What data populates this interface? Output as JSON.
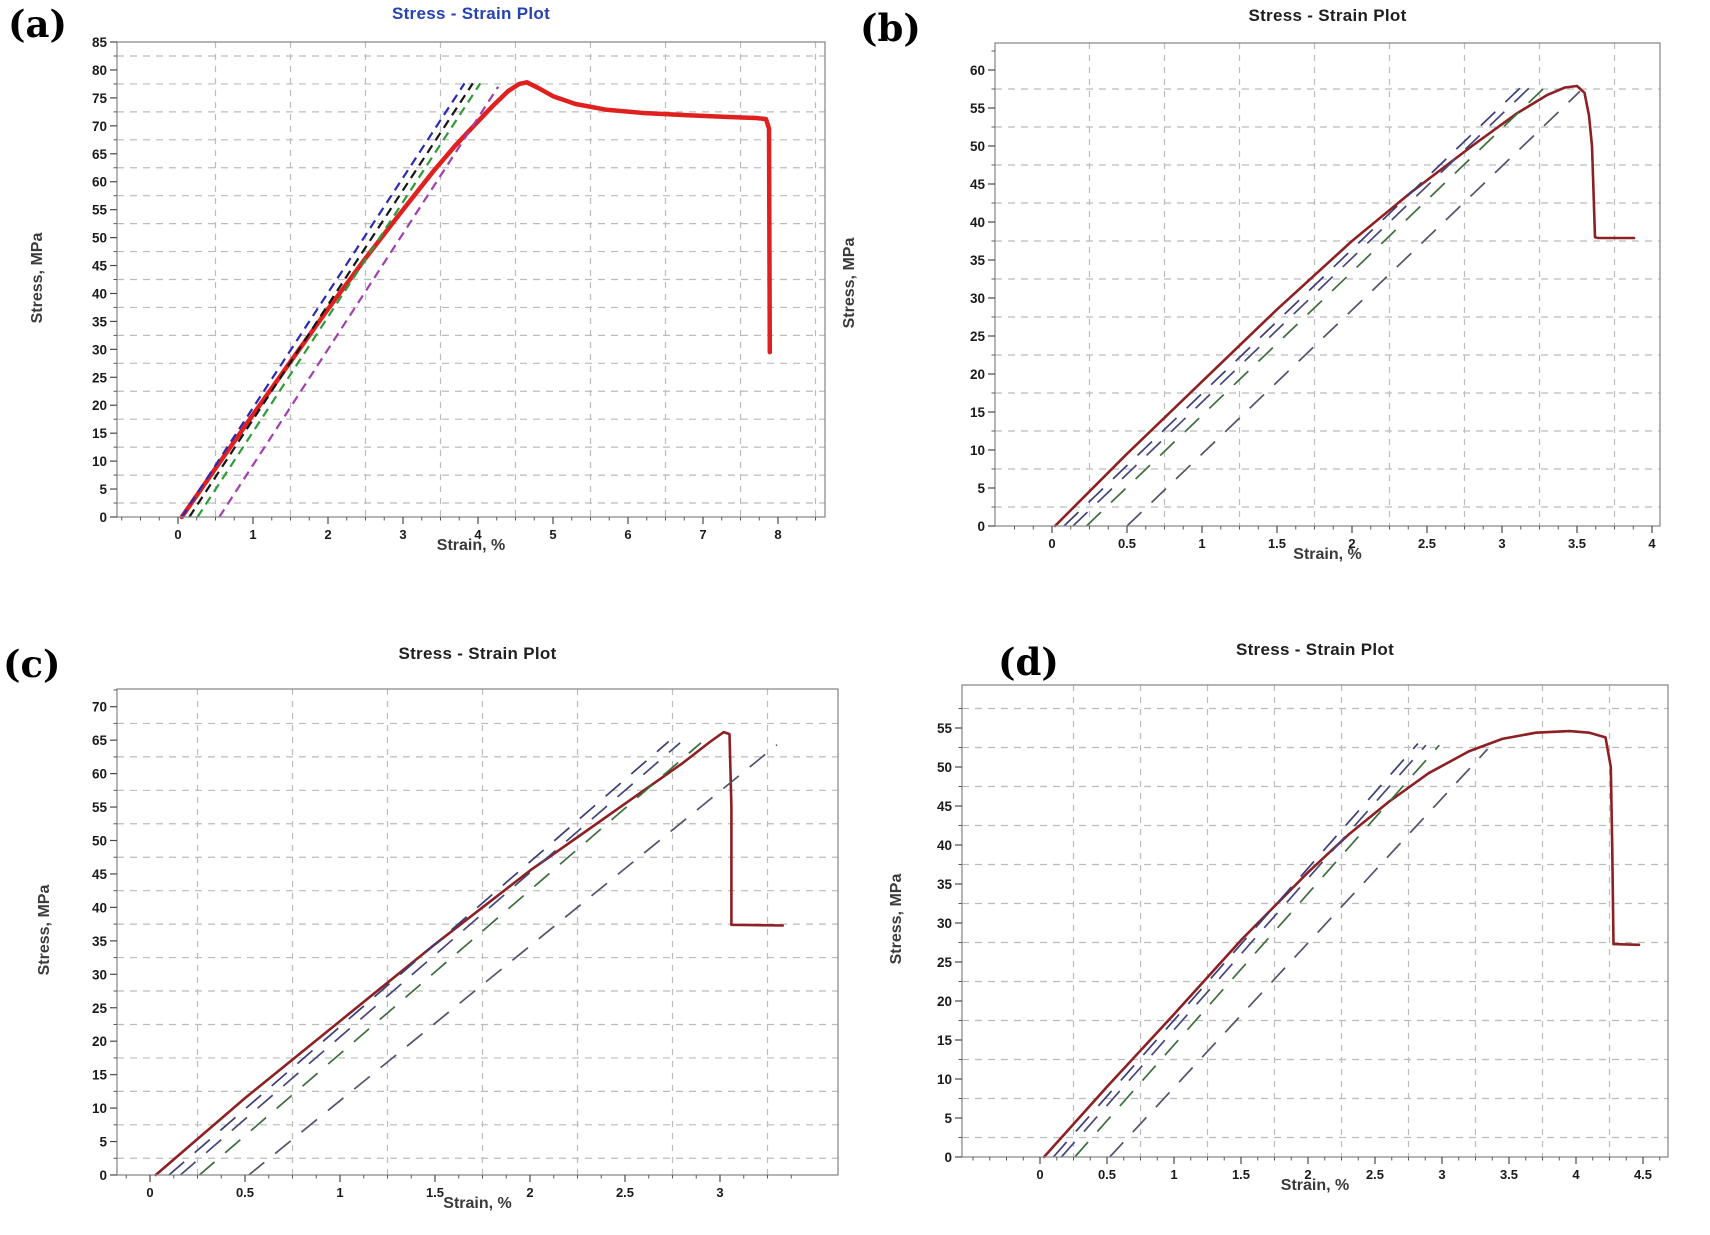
{
  "figure": {
    "description": "Four stress-strain test plots",
    "background": "#ffffff",
    "grid_color": "#bcbcbc",
    "border_color": "#8d8d8d",
    "tick_label_color": "#1a1a1a",
    "axis_title_color": "#3a3a3a"
  },
  "chart_data": [
    {
      "panel_label": "(a)",
      "type": "line",
      "title": "Stress - Strain Plot",
      "title_color": "#2743b0",
      "xlabel": "Strain, %",
      "ylabel": "Stress, MPa",
      "x_ticks": [
        0,
        1,
        2,
        3,
        4,
        5,
        6,
        7,
        8
      ],
      "y_ticks": [
        0,
        5,
        10,
        15,
        20,
        25,
        30,
        35,
        40,
        45,
        50,
        55,
        60,
        65,
        70,
        75,
        80,
        85
      ],
      "xlim": [
        -0.81,
        8.63
      ],
      "ylim": [
        0,
        85
      ],
      "grid": "dashed, midpoints between ticks",
      "series": [
        {
          "name": "stress-strain-curve",
          "color": "#e01f1f",
          "style": "solid",
          "width": 4.5,
          "points": [
            [
              0.05,
              0
            ],
            [
              0.5,
              8.7
            ],
            [
              1,
              18.3
            ],
            [
              1.5,
              27.8
            ],
            [
              2,
              37.2
            ],
            [
              2.5,
              46.3
            ],
            [
              3,
              55
            ],
            [
              3.4,
              61.8
            ],
            [
              3.7,
              66.5
            ],
            [
              4,
              70.8
            ],
            [
              4.2,
              73.6
            ],
            [
              4.4,
              76.2
            ],
            [
              4.55,
              77.5
            ],
            [
              4.65,
              77.8
            ],
            [
              4.8,
              76.8
            ],
            [
              5,
              75.3
            ],
            [
              5.3,
              73.9
            ],
            [
              5.7,
              72.9
            ],
            [
              6.2,
              72.3
            ],
            [
              6.8,
              71.9
            ],
            [
              7.3,
              71.6
            ],
            [
              7.7,
              71.4
            ],
            [
              7.84,
              71.2
            ],
            [
              7.88,
              69.5
            ],
            [
              7.89,
              29.5
            ]
          ]
        },
        {
          "name": "modulus-line-1",
          "color": "#2a2ab2",
          "style": "dashed",
          "width": 2.2,
          "points": [
            [
              0.05,
              0
            ],
            [
              3.82,
              77.6
            ]
          ]
        },
        {
          "name": "modulus-line-2",
          "color": "#161616",
          "style": "dashed",
          "width": 2.2,
          "points": [
            [
              0.15,
              0
            ],
            [
              3.93,
              77.6
            ]
          ]
        },
        {
          "name": "modulus-line-3",
          "color": "#2f9b35",
          "style": "dashed",
          "width": 2.2,
          "points": [
            [
              0.26,
              0
            ],
            [
              4.03,
              77.6
            ]
          ]
        },
        {
          "name": "modulus-line-4",
          "color": "#a13fae",
          "style": "dashed",
          "width": 2.2,
          "points": [
            [
              0.55,
              0
            ],
            [
              4.27,
              77.0
            ]
          ]
        }
      ]
    },
    {
      "panel_label": "(b)",
      "type": "line",
      "title": "Stress - Strain Plot",
      "title_color": "#1f1f1f",
      "xlabel": "Strain, %",
      "ylabel": "Stress, MPa",
      "x_ticks": [
        0,
        0.5,
        1,
        1.5,
        2,
        2.5,
        3,
        3.5,
        4
      ],
      "y_ticks": [
        0,
        5,
        10,
        15,
        20,
        25,
        30,
        35,
        40,
        45,
        50,
        55,
        60
      ],
      "xlim": [
        -0.38,
        4.05
      ],
      "ylim": [
        0,
        63.5
      ],
      "grid": "dashed, midpoints between ticks",
      "series": [
        {
          "name": "stress-strain-curve",
          "color": "#8c2022",
          "style": "solid",
          "width": 2.6,
          "points": [
            [
              0.02,
              0
            ],
            [
              0.5,
              9.5
            ],
            [
              1,
              19
            ],
            [
              1.5,
              28.5
            ],
            [
              2,
              37.5
            ],
            [
              2.4,
              44
            ],
            [
              2.8,
              50
            ],
            [
              3.1,
              54.3
            ],
            [
              3.3,
              56.7
            ],
            [
              3.42,
              57.7
            ],
            [
              3.5,
              57.9
            ],
            [
              3.55,
              57
            ],
            [
              3.58,
              54
            ],
            [
              3.6,
              50
            ],
            [
              3.61,
              44
            ],
            [
              3.62,
              38
            ],
            [
              3.64,
              37.9
            ],
            [
              3.88,
              37.9
            ]
          ]
        },
        {
          "name": "modulus-line-1",
          "color": "#3c3c78",
          "style": "dashed",
          "width": 1.7,
          "points": [
            [
              0.08,
              0
            ],
            [
              3.15,
              58.2
            ]
          ]
        },
        {
          "name": "modulus-line-2",
          "color": "#46467f",
          "style": "dashed",
          "width": 1.7,
          "points": [
            [
              0.14,
              0
            ],
            [
              3.2,
              58.0
            ]
          ]
        },
        {
          "name": "modulus-line-3",
          "color": "#3c6e3c",
          "style": "dashed",
          "width": 1.7,
          "points": [
            [
              0.23,
              0
            ],
            [
              3.3,
              58.0
            ]
          ]
        },
        {
          "name": "modulus-line-4",
          "color": "#52526b",
          "style": "dashed",
          "width": 1.7,
          "points": [
            [
              0.5,
              0
            ],
            [
              3.52,
              57.2
            ]
          ]
        }
      ]
    },
    {
      "panel_label": "(c)",
      "type": "line",
      "title": "Stress - Strain Plot",
      "title_color": "#1f1f1f",
      "xlabel": "Strain, %",
      "ylabel": "Stress, MPa",
      "x_ticks": [
        0,
        0.5,
        1,
        1.5,
        2,
        2.5,
        3
      ],
      "y_ticks": [
        0,
        5,
        10,
        15,
        20,
        25,
        30,
        35,
        40,
        45,
        50,
        55,
        60,
        65,
        70
      ],
      "xlim": [
        -0.17,
        3.62
      ],
      "ylim": [
        0,
        72.6
      ],
      "grid": "dashed, midpoints between ticks",
      "series": [
        {
          "name": "stress-strain-curve",
          "color": "#8c2022",
          "style": "solid",
          "width": 2.6,
          "points": [
            [
              0.03,
              0
            ],
            [
              0.5,
              11.5
            ],
            [
              1,
              23
            ],
            [
              1.5,
              34.5
            ],
            [
              2,
              45.5
            ],
            [
              2.3,
              51.5
            ],
            [
              2.6,
              57.5
            ],
            [
              2.8,
              61.5
            ],
            [
              2.95,
              64.8
            ],
            [
              3.02,
              66.2
            ],
            [
              3.05,
              65.9
            ],
            [
              3.06,
              55
            ],
            [
              3.06,
              37.4
            ],
            [
              3.33,
              37.3
            ]
          ]
        },
        {
          "name": "modulus-line-1",
          "color": "#3c3c78",
          "style": "dashed",
          "width": 1.7,
          "points": [
            [
              0.1,
              0
            ],
            [
              2.73,
              64.8
            ]
          ]
        },
        {
          "name": "modulus-line-2",
          "color": "#46467f",
          "style": "dashed",
          "width": 1.7,
          "points": [
            [
              0.16,
              0
            ],
            [
              2.79,
              64.6
            ]
          ]
        },
        {
          "name": "modulus-line-3",
          "color": "#3c6e3c",
          "style": "dashed",
          "width": 1.7,
          "points": [
            [
              0.26,
              0
            ],
            [
              2.9,
              64.6
            ]
          ]
        },
        {
          "name": "modulus-line-4",
          "color": "#52526b",
          "style": "dashed",
          "width": 1.7,
          "points": [
            [
              0.52,
              0
            ],
            [
              3.3,
              64.3
            ]
          ]
        }
      ]
    },
    {
      "panel_label": "(d)",
      "type": "line",
      "title": "Stress - Strain Plot",
      "title_color": "#1f1f1f",
      "xlabel": "Strain, %",
      "ylabel": "Stress, MPa",
      "x_ticks": [
        0,
        0.5,
        1,
        1.5,
        2,
        2.5,
        3,
        3.5,
        4,
        4.5
      ],
      "y_ticks": [
        0,
        5,
        10,
        15,
        20,
        25,
        30,
        35,
        40,
        45,
        50,
        55
      ],
      "xlim": [
        -0.58,
        4.69
      ],
      "ylim": [
        0,
        60.5
      ],
      "grid": "dashed, midpoints between ticks",
      "series": [
        {
          "name": "stress-strain-curve",
          "color": "#8c2022",
          "style": "solid",
          "width": 2.6,
          "points": [
            [
              0.03,
              0
            ],
            [
              0.5,
              9
            ],
            [
              1,
              18.3
            ],
            [
              1.5,
              27.8
            ],
            [
              2,
              36.5
            ],
            [
              2.3,
              41.3
            ],
            [
              2.6,
              45.5
            ],
            [
              2.9,
              49.2
            ],
            [
              3.2,
              52
            ],
            [
              3.45,
              53.6
            ],
            [
              3.7,
              54.4
            ],
            [
              3.95,
              54.6
            ],
            [
              4.1,
              54.4
            ],
            [
              4.22,
              53.8
            ],
            [
              4.26,
              50
            ],
            [
              4.27,
              40
            ],
            [
              4.28,
              27.3
            ],
            [
              4.47,
              27.2
            ]
          ]
        },
        {
          "name": "modulus-line-1",
          "color": "#3c3c78",
          "style": "dashed",
          "width": 1.7,
          "points": [
            [
              0.1,
              0
            ],
            [
              2.82,
              53.0
            ]
          ]
        },
        {
          "name": "modulus-line-2",
          "color": "#46467f",
          "style": "dashed",
          "width": 1.7,
          "points": [
            [
              0.16,
              0
            ],
            [
              2.88,
              52.8
            ]
          ]
        },
        {
          "name": "modulus-line-3",
          "color": "#3c6e3c",
          "style": "dashed",
          "width": 1.7,
          "points": [
            [
              0.26,
              0
            ],
            [
              2.98,
              52.8
            ]
          ]
        },
        {
          "name": "modulus-line-4",
          "color": "#52526b",
          "style": "dashed",
          "width": 1.7,
          "points": [
            [
              0.52,
              0
            ],
            [
              3.34,
              52.3
            ]
          ]
        }
      ]
    }
  ]
}
